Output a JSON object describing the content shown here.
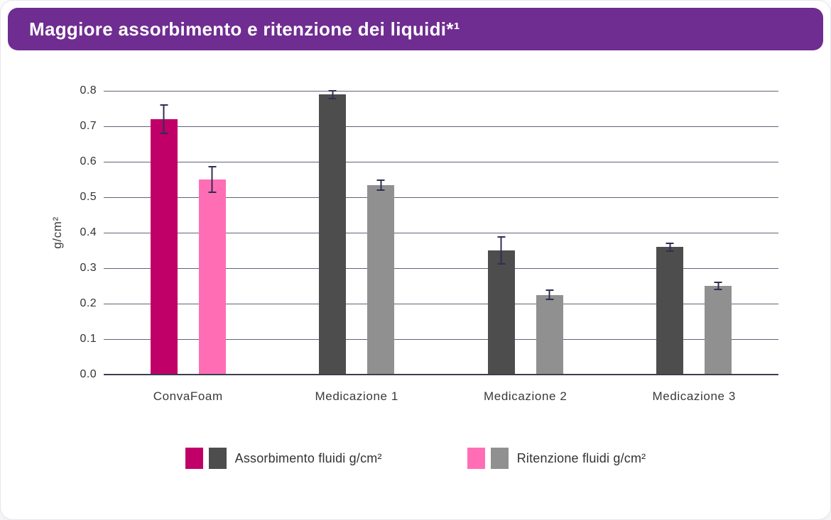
{
  "header": {
    "title": "Maggiore assorbimento e ritenzione dei liquidi*¹",
    "background_color": "#6F2C91"
  },
  "chart_data": {
    "type": "bar",
    "title": "Maggiore assorbimento e ritenzione dei liquidi*¹",
    "xlabel": "",
    "ylabel": "g/cm²",
    "ylim": [
      0,
      0.8
    ],
    "ytick_step": 0.1,
    "ytick_labels": [
      "0.0",
      "0.1",
      "0.2",
      "0.3",
      "0.4",
      "0.5",
      "0.6",
      "0.7",
      "0.8"
    ],
    "grid": true,
    "gridline_color": "#62627a",
    "baseline_color": "#3c3c52",
    "error_bar_color": "#2F2F52",
    "categories": [
      "ConvaFoam",
      "Medicazione 1",
      "Medicazione 2",
      "Medicazione 3"
    ],
    "series": [
      {
        "name": "Assorbimento fluidi g/cm²",
        "values": [
          0.72,
          0.79,
          0.35,
          0.36
        ],
        "errors": [
          0.042,
          0.013,
          0.04,
          0.013
        ],
        "bar_colors": [
          "#C00068",
          "#4D4D4D",
          "#4D4D4D",
          "#4D4D4D"
        ]
      },
      {
        "name": "Ritenzione fluidi g/cm²",
        "values": [
          0.55,
          0.535,
          0.225,
          0.25
        ],
        "errors": [
          0.038,
          0.016,
          0.015,
          0.012
        ],
        "bar_colors": [
          "#FF6EB5",
          "#909090",
          "#909090",
          "#909090"
        ]
      }
    ],
    "legend": {
      "position": "bottom",
      "items": [
        {
          "label": "Assorbimento fluidi g/cm²",
          "swatches": [
            "#C00068",
            "#4D4D4D"
          ]
        },
        {
          "label": "Ritenzione fluidi g/cm²",
          "swatches": [
            "#FF6EB5",
            "#909090"
          ]
        }
      ]
    }
  }
}
